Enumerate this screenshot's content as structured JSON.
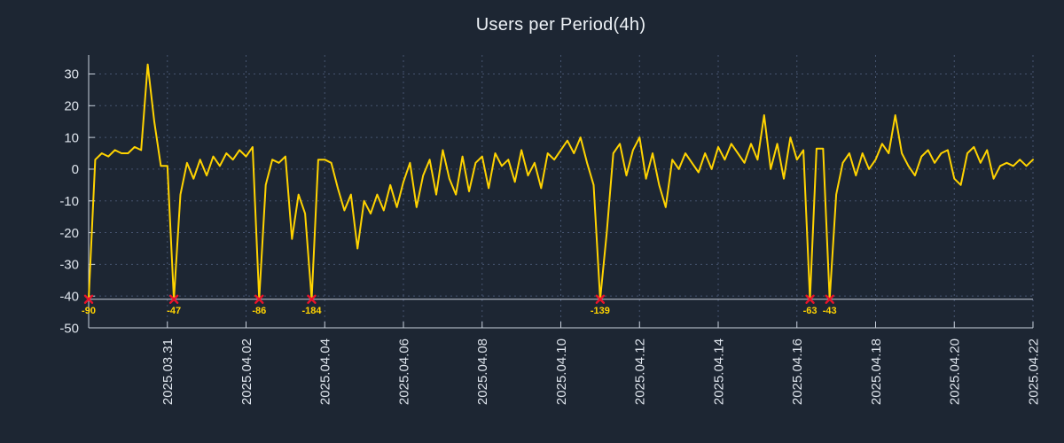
{
  "colors": {
    "background": "#1d2633",
    "line": "#ffd300",
    "grid": "#465470",
    "axis": "#c9d1dc",
    "clip_line": "#c9d1dc",
    "text": "#dde3eb",
    "marker": "#e8132a",
    "label": "#ffd300",
    "title": "#eef2f7"
  },
  "chart_data": {
    "type": "line",
    "title": "Users per Period(4h)",
    "xlabel": "",
    "ylabel": "",
    "x_range": [
      "2025.03.29",
      "2025.04.22"
    ],
    "interval_hours": 4,
    "ylim": [
      -50,
      36
    ],
    "yticks": [
      30,
      20,
      10,
      0,
      -10,
      -20,
      -30,
      -40,
      -50
    ],
    "xtick_labels": [
      "2025.03.31",
      "2025.04.02",
      "2025.04.04",
      "2025.04.06",
      "2025.04.08",
      "2025.04.10",
      "2025.04.12",
      "2025.04.14",
      "2025.04.16",
      "2025.04.18",
      "2025.04.20",
      "2025.04.22"
    ],
    "xtick_indices": [
      12,
      24,
      36,
      48,
      60,
      72,
      84,
      96,
      108,
      120,
      132,
      144
    ],
    "grid": true,
    "legend": false,
    "clip_value": -41,
    "values": [
      -90,
      3,
      5,
      4,
      6,
      5,
      5,
      7,
      6,
      33,
      15,
      1,
      1,
      -47,
      -8,
      2,
      -3,
      3,
      -2,
      4,
      1,
      5,
      3,
      6,
      4,
      7,
      -86,
      -5,
      3,
      2,
      4,
      -22,
      -8,
      -14,
      -184,
      3,
      3,
      2,
      -6,
      -13,
      -8,
      -25,
      -10,
      -14,
      -8,
      -13,
      -5,
      -12,
      -4,
      2,
      -12,
      -2,
      3,
      -8,
      6,
      -3,
      -8,
      4,
      -7,
      2,
      4,
      -6,
      5,
      1,
      3,
      -4,
      6,
      -2,
      2,
      -6,
      5,
      3,
      6,
      9,
      5,
      10,
      2,
      -5,
      -139,
      -20,
      5,
      8,
      -2,
      6,
      10,
      -3,
      5,
      -5,
      -12,
      3,
      0,
      5,
      2,
      -1,
      5,
      0,
      7,
      3,
      8,
      5,
      2,
      8,
      3,
      17,
      0,
      8,
      -3,
      10,
      3,
      6,
      -63,
      6.5,
      6.5,
      -43,
      -8,
      2,
      5,
      -2,
      5,
      0,
      3,
      8,
      5,
      17,
      5,
      1,
      -2,
      4,
      6,
      2,
      5,
      6,
      -3,
      -5,
      5,
      7,
      2,
      6,
      -3,
      1,
      2,
      1,
      3,
      1,
      3
    ],
    "clipped_points": [
      {
        "index": 0,
        "value": -90,
        "label": "-90"
      },
      {
        "index": 13,
        "value": -47,
        "label": "-47"
      },
      {
        "index": 26,
        "value": -86,
        "label": "-86"
      },
      {
        "index": 34,
        "value": -184,
        "label": "-184"
      },
      {
        "index": 78,
        "value": -139,
        "label": "-139"
      },
      {
        "index": 110,
        "value": -63,
        "label": "-63"
      },
      {
        "index": 113,
        "value": -43,
        "label": "-43"
      }
    ]
  }
}
